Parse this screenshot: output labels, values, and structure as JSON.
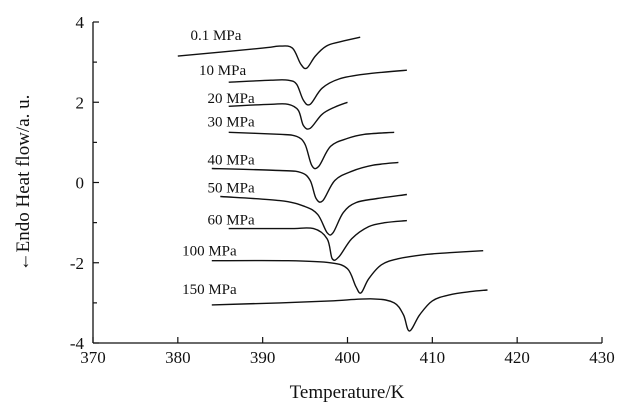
{
  "chart_data": {
    "type": "line",
    "title": "",
    "xlabel": "Temperature/K",
    "ylabel": "←Endo        Heat flow/a. u.",
    "xlim": [
      370,
      430
    ],
    "ylim": [
      -4,
      4
    ],
    "xticks": [
      370,
      380,
      390,
      400,
      410,
      420,
      430
    ],
    "yticks": [
      -4,
      -2,
      0,
      2,
      4
    ],
    "grid": false,
    "legend": "none",
    "series": [
      {
        "name": "0.1 MPa",
        "x": [
          380,
          390,
          392,
          393.5,
          394.5,
          395.2,
          396.2,
          397.5,
          399,
          401.5
        ],
        "y": [
          3.15,
          3.35,
          3.4,
          3.35,
          2.95,
          2.85,
          3.15,
          3.4,
          3.5,
          3.62
        ]
      },
      {
        "name": "10 MPa",
        "x": [
          386,
          391,
          393,
          394,
          394.8,
          395.6,
          397,
          399,
          402,
          407
        ],
        "y": [
          2.5,
          2.55,
          2.55,
          2.45,
          2.05,
          1.95,
          2.35,
          2.58,
          2.7,
          2.8
        ]
      },
      {
        "name": "20 MPa",
        "x": [
          386,
          391,
          393,
          394.2,
          394.8,
          395.6,
          397,
          398.5,
          400
        ],
        "y": [
          1.9,
          1.95,
          1.95,
          1.8,
          1.42,
          1.35,
          1.7,
          1.88,
          2.0
        ]
      },
      {
        "name": "30 MPa",
        "x": [
          386,
          392,
          394,
          395,
          395.8,
          396.6,
          398,
          400,
          402,
          405.5
        ],
        "y": [
          1.25,
          1.2,
          1.15,
          0.95,
          0.42,
          0.4,
          0.9,
          1.1,
          1.2,
          1.25
        ]
      },
      {
        "name": "40 MPa",
        "x": [
          384,
          392,
          394.5,
          395.6,
          396.3,
          397.1,
          398.5,
          400.5,
          403,
          406
        ],
        "y": [
          0.35,
          0.3,
          0.25,
          0.05,
          -0.4,
          -0.45,
          0.05,
          0.28,
          0.43,
          0.5
        ]
      },
      {
        "name": "50 MPa",
        "x": [
          385,
          392,
          395,
          396.5,
          397.6,
          398.3,
          399.5,
          401,
          403.5,
          407
        ],
        "y": [
          -0.35,
          -0.45,
          -0.6,
          -0.8,
          -1.25,
          -1.25,
          -0.75,
          -0.5,
          -0.4,
          -0.3
        ]
      },
      {
        "name": "60 MPa",
        "x": [
          386,
          393,
          396,
          397.6,
          398.2,
          399,
          400.5,
          402.5,
          404.5,
          407
        ],
        "y": [
          -1.15,
          -1.15,
          -1.15,
          -1.4,
          -1.9,
          -1.85,
          -1.4,
          -1.1,
          -1.0,
          -0.95
        ]
      },
      {
        "name": "100 MPa",
        "x": [
          384,
          393,
          398,
          400,
          401,
          401.6,
          402.5,
          404,
          406,
          409,
          412,
          416
        ],
        "y": [
          -1.95,
          -1.95,
          -2.0,
          -2.15,
          -2.6,
          -2.75,
          -2.4,
          -2.05,
          -1.9,
          -1.8,
          -1.75,
          -1.7
        ]
      },
      {
        "name": "150 MPa",
        "x": [
          384,
          392,
          398,
          403,
          405.5,
          406.6,
          407.3,
          408.5,
          410,
          412,
          414.5,
          416.5
        ],
        "y": [
          -3.05,
          -3.0,
          -2.95,
          -2.9,
          -3.0,
          -3.3,
          -3.7,
          -3.3,
          -2.95,
          -2.8,
          -2.72,
          -2.68
        ]
      }
    ],
    "series_labels": [
      {
        "text": "0.1 MPa",
        "x": 381.5,
        "y": 3.55
      },
      {
        "text": "10 MPa",
        "x": 382.5,
        "y": 2.68
      },
      {
        "text": "20 MPa",
        "x": 383.5,
        "y": 1.98
      },
      {
        "text": "30 MPa",
        "x": 383.5,
        "y": 1.4
      },
      {
        "text": "40 MPa",
        "x": 383.5,
        "y": 0.45
      },
      {
        "text": "50 MPa",
        "x": 383.5,
        "y": -0.25
      },
      {
        "text": "60 MPa",
        "x": 383.5,
        "y": -1.05
      },
      {
        "text": "100 MPa",
        "x": 380.5,
        "y": -1.82
      },
      {
        "text": "150 MPa",
        "x": 380.5,
        "y": -2.78
      }
    ]
  }
}
